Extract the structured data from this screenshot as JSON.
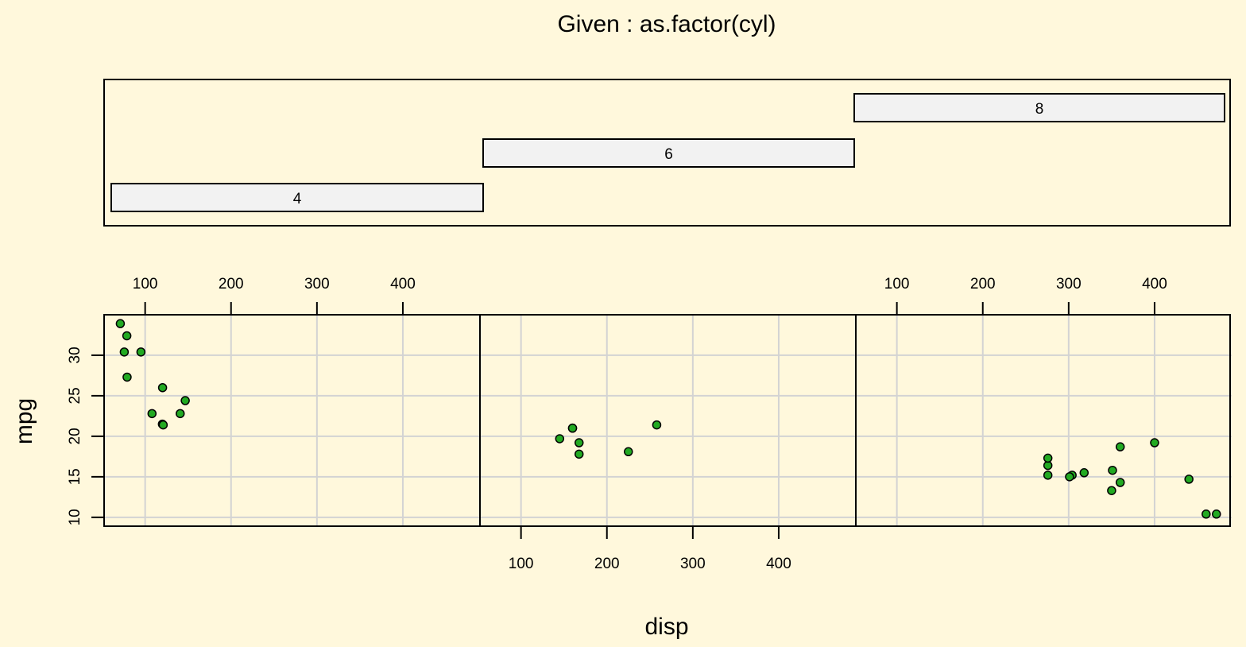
{
  "colors": {
    "background": "#fff8dc",
    "strip_fill": "#f2f2f2",
    "grid": "#d3d3d3",
    "point_fill": "#22aa22",
    "point_stroke": "#000000"
  },
  "chart_data": {
    "type": "scatter",
    "layout": "coplot",
    "title": "Given : as.factor(cyl)",
    "xlabel": "disp",
    "ylabel": "mpg",
    "x_ticks": [
      100,
      200,
      300,
      400
    ],
    "y_ticks": [
      10,
      15,
      20,
      25,
      30
    ],
    "xlim": [
      55,
      487
    ],
    "ylim": [
      9.2,
      34.7
    ],
    "grid": true,
    "given": {
      "levels": [
        "4",
        "6",
        "8"
      ]
    },
    "panels": [
      {
        "given": "4",
        "points": [
          {
            "x": 108,
            "y": 22.8
          },
          {
            "x": 146.7,
            "y": 24.4
          },
          {
            "x": 140.8,
            "y": 22.8
          },
          {
            "x": 78.7,
            "y": 32.4
          },
          {
            "x": 75.7,
            "y": 30.4
          },
          {
            "x": 71.1,
            "y": 33.9
          },
          {
            "x": 120.1,
            "y": 21.5
          },
          {
            "x": 79,
            "y": 27.3
          },
          {
            "x": 120.3,
            "y": 26.0
          },
          {
            "x": 95.1,
            "y": 30.4
          },
          {
            "x": 121,
            "y": 21.4
          }
        ]
      },
      {
        "given": "6",
        "points": [
          {
            "x": 160,
            "y": 21.0
          },
          {
            "x": 160,
            "y": 21.0
          },
          {
            "x": 258,
            "y": 21.4
          },
          {
            "x": 225,
            "y": 18.1
          },
          {
            "x": 167.6,
            "y": 19.2
          },
          {
            "x": 167.6,
            "y": 17.8
          },
          {
            "x": 145,
            "y": 19.7
          }
        ]
      },
      {
        "given": "8",
        "points": [
          {
            "x": 360,
            "y": 18.7
          },
          {
            "x": 360,
            "y": 14.3
          },
          {
            "x": 275.8,
            "y": 16.4
          },
          {
            "x": 275.8,
            "y": 17.3
          },
          {
            "x": 275.8,
            "y": 15.2
          },
          {
            "x": 472,
            "y": 10.4
          },
          {
            "x": 460,
            "y": 10.4
          },
          {
            "x": 440,
            "y": 14.7
          },
          {
            "x": 318,
            "y": 15.5
          },
          {
            "x": 304,
            "y": 15.2
          },
          {
            "x": 350,
            "y": 13.3
          },
          {
            "x": 400,
            "y": 19.2
          },
          {
            "x": 351,
            "y": 15.8
          },
          {
            "x": 301,
            "y": 15.0
          }
        ]
      }
    ]
  }
}
